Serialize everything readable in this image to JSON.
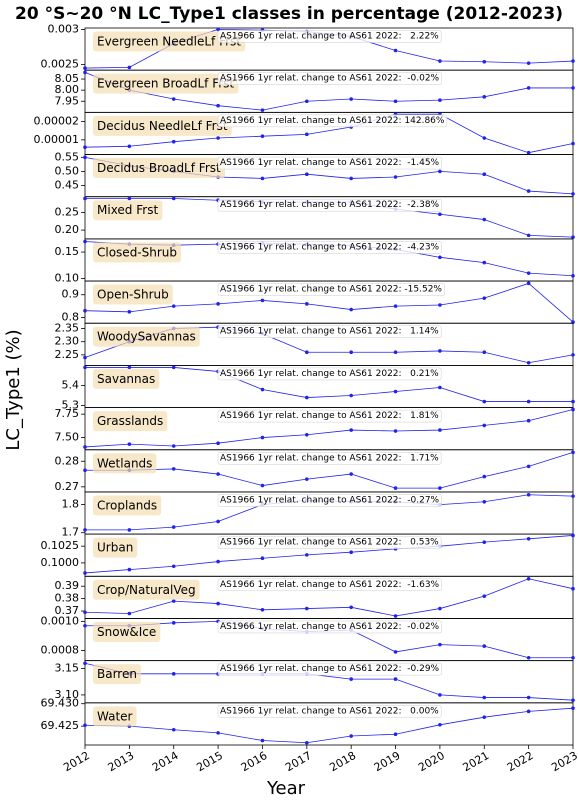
{
  "chart_data": {
    "type": "line",
    "title": "20 °S~20 °N LC_Type1 classes in percentage (2012-2023)",
    "x_label": "Year",
    "y_label": "LC_Type1 (%)",
    "color": "#2222ee",
    "x": [
      2012,
      2013,
      2014,
      2015,
      2016,
      2017,
      2018,
      2019,
      2020,
      2021,
      2022,
      2023
    ],
    "xlim": [
      2012,
      2023
    ],
    "xticks": [
      2012,
      2013,
      2014,
      2015,
      2016,
      2017,
      2018,
      2019,
      2020,
      2021,
      2022,
      2023
    ],
    "panels": [
      {
        "label": "Evergreen NeedleLf Frst",
        "annotation": "AS1966 1yr relat. change to AS61 2022:   2.22%",
        "values": [
          0.00245,
          0.00246,
          0.0028,
          0.003,
          0.00299,
          0.00297,
          0.0029,
          0.0027,
          0.00255,
          0.00254,
          0.00252,
          0.00255
        ],
        "ylim": [
          0.00242,
          0.00302
        ],
        "yticks": [
          0.0025,
          0.003
        ]
      },
      {
        "label": "Evergreen BroadLf Frst",
        "annotation": "AS1966 1yr relat. change to AS61 2022:  -0.02%",
        "values": [
          8.08,
          8.0,
          7.96,
          7.93,
          7.91,
          7.95,
          7.96,
          7.95,
          7.955,
          7.97,
          8.01,
          8.01
        ],
        "ylim": [
          7.9,
          8.09
        ],
        "yticks": [
          7.95,
          {
            "value": 8,
            "label": "8.00"
          },
          8.05
        ]
      },
      {
        "label": "Decidus NeedleLf Frst",
        "annotation": "AS1966 1yr relat. change to AS61 2022: 142.86%",
        "values": [
          6e-06,
          6.5e-06,
          9e-06,
          1.1e-05,
          1.2e-05,
          1.3e-05,
          1.7e-05,
          2.4e-05,
          2.4e-05,
          1.1e-05,
          3e-06,
          8e-06
        ],
        "ylim": [
          2e-06,
          2.5e-05
        ],
        "yticks": [
          1e-05,
          2e-05
        ]
      },
      {
        "label": "Decidus BroadLf Frst",
        "annotation": "AS1966 1yr relat. change to AS61 2022:  -1.45%",
        "values": [
          0.55,
          0.52,
          0.5,
          0.48,
          0.475,
          0.49,
          0.475,
          0.48,
          0.5,
          0.49,
          0.43,
          0.42
        ],
        "ylim": [
          0.41,
          0.56
        ],
        "yticks": [
          0.45,
          {
            "value": 0.5,
            "label": "0.50"
          },
          0.55
        ]
      },
      {
        "label": "Mixed Frst",
        "annotation": "AS1966 1yr relat. change to AS61 2022:  -2.38%",
        "values": [
          0.29,
          0.29,
          0.29,
          0.285,
          0.28,
          0.28,
          0.28,
          0.26,
          0.245,
          0.23,
          0.185,
          0.18
        ],
        "ylim": [
          0.175,
          0.295
        ],
        "yticks": [
          {
            "value": 0.2,
            "label": "0.20"
          },
          0.25
        ]
      },
      {
        "label": "Closed-Shrub",
        "annotation": "AS1966 1yr relat. change to AS61 2022:  -4.23%",
        "values": [
          0.17,
          0.165,
          0.163,
          0.165,
          0.167,
          0.165,
          0.162,
          0.155,
          0.14,
          0.13,
          0.11,
          0.105
        ],
        "ylim": [
          0.095,
          0.175
        ],
        "yticks": [
          {
            "value": 0.1,
            "label": "0.10"
          },
          0.15
        ]
      },
      {
        "label": "Open-Shrub",
        "annotation": "AS1966 1yr relat. change to AS61 2022: -15.52%",
        "values": [
          0.83,
          0.825,
          0.85,
          0.86,
          0.875,
          0.86,
          0.835,
          0.85,
          0.855,
          0.885,
          0.95,
          0.78
        ],
        "ylim": [
          0.775,
          0.96
        ],
        "yticks": [
          0.8,
          0.9
        ]
      },
      {
        "label": "WoodySavannas",
        "annotation": "AS1966 1yr relat. change to AS61 2022:   1.14%",
        "values": [
          2.24,
          2.3,
          2.35,
          2.355,
          2.33,
          2.26,
          2.26,
          2.26,
          2.265,
          2.26,
          2.22,
          2.25
        ],
        "ylim": [
          2.21,
          2.37
        ],
        "yticks": [
          2.25,
          {
            "value": 2.3,
            "label": "2.30"
          },
          2.35
        ]
      },
      {
        "label": "Savannas",
        "annotation": "AS1966 1yr relat. change to AS61 2022:   0.21%",
        "values": [
          5.49,
          5.49,
          5.49,
          5.47,
          5.38,
          5.34,
          5.35,
          5.37,
          5.39,
          5.32,
          5.32,
          5.32
        ],
        "ylim": [
          5.29,
          5.5
        ],
        "yticks": [
          5.3,
          5.4
        ]
      },
      {
        "label": "Grasslands",
        "annotation": "AS1966 1yr relat. change to AS61 2022:   1.81%",
        "values": [
          7.4,
          7.43,
          7.41,
          7.44,
          7.5,
          7.53,
          7.58,
          7.57,
          7.58,
          7.63,
          7.68,
          7.8
        ],
        "ylim": [
          7.37,
          7.82
        ],
        "yticks": [
          {
            "value": 7.5,
            "label": "7.50"
          },
          7.75
        ]
      },
      {
        "label": "Wetlands",
        "annotation": "AS1966 1yr relat. change to AS61 2022:   1.71%",
        "values": [
          0.2765,
          0.2765,
          0.277,
          0.275,
          0.2705,
          0.273,
          0.275,
          0.2695,
          0.2695,
          0.274,
          0.278,
          0.2835
        ],
        "ylim": [
          0.268,
          0.2845
        ],
        "yticks": [
          0.27,
          0.28
        ]
      },
      {
        "label": "Croplands",
        "annotation": "AS1966 1yr relat. change to AS61 2022:  -0.27%",
        "values": [
          1.71,
          1.71,
          1.72,
          1.74,
          1.8,
          1.815,
          1.81,
          1.81,
          1.8,
          1.81,
          1.835,
          1.83
        ],
        "ylim": [
          1.695,
          1.845
        ],
        "yticks": [
          1.7,
          1.8
        ]
      },
      {
        "label": "Urban",
        "annotation": "AS1966 1yr relat. change to AS61 2022:   0.53%",
        "values": [
          0.0985,
          0.099,
          0.0995,
          0.1002,
          0.1007,
          0.1012,
          0.1016,
          0.1021,
          0.1025,
          0.1031,
          0.1036,
          0.1041
        ],
        "ylim": [
          0.098,
          0.1043
        ],
        "yticks": [
          {
            "value": 0.1,
            "label": "0.1000"
          },
          0.1025
        ]
      },
      {
        "label": "Crop/NaturalVeg",
        "annotation": "AS1966 1yr relat. change to AS61 2022:  -1.63%",
        "values": [
          0.369,
          0.368,
          0.378,
          0.376,
          0.371,
          0.372,
          0.373,
          0.366,
          0.372,
          0.382,
          0.396,
          0.388
        ],
        "ylim": [
          0.364,
          0.398
        ],
        "yticks": [
          0.37,
          0.38,
          0.39
        ]
      },
      {
        "label": "Snow&Ice",
        "annotation": "AS1966 1yr relat. change to AS61 2022:  -0.02%",
        "values": [
          0.00097,
          0.00097,
          0.00099,
          0.001,
          0.00095,
          0.00093,
          0.00094,
          0.00079,
          0.00084,
          0.00083,
          0.00075,
          0.00075
        ],
        "ylim": [
          0.00073,
          0.00102
        ],
        "yticks": [
          0.0008,
          {
            "value": 0.001,
            "label": "0.0010"
          }
        ]
      },
      {
        "label": "Barren",
        "annotation": "AS1966 1yr relat. change to AS61 2022:  -0.29%",
        "values": [
          3.16,
          3.14,
          3.14,
          3.14,
          3.14,
          3.14,
          3.13,
          3.13,
          3.1,
          3.095,
          3.095,
          3.09
        ],
        "ylim": [
          3.085,
          3.165
        ],
        "yticks": [
          {
            "value": 3.1,
            "label": "3.10"
          },
          3.15
        ]
      },
      {
        "label": "Water",
        "annotation": "AS1966 1yr relat. change to AS61 2022:   0.00%",
        "values": [
          69.4252,
          69.425,
          69.4242,
          69.4235,
          69.4218,
          69.4213,
          69.4228,
          69.4232,
          69.4253,
          69.427,
          69.4283,
          69.429
        ],
        "ylim": [
          69.4208,
          69.4302
        ],
        "yticks": [
          69.425,
          {
            "value": 69.43,
            "label": "69.430"
          }
        ]
      }
    ]
  }
}
